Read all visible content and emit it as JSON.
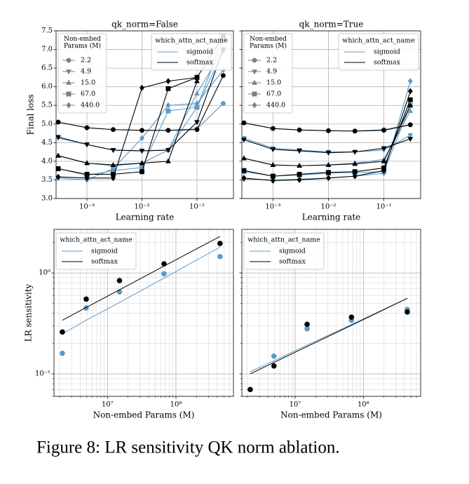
{
  "caption": "Figure 8: LR sensitivity QK norm ablation.",
  "chart_data": [
    {
      "type": "line",
      "title": "qk_norm=False",
      "xlabel": "Learning rate",
      "ylabel": "Final loss",
      "xscale": "log",
      "x": [
        0.0003,
        0.001,
        0.003,
        0.01,
        0.03,
        0.1,
        0.3
      ],
      "xlim": [
        0.000275,
        0.46
      ],
      "ylim": [
        3,
        7.5
      ],
      "xticks": [
        {
          "value": 0.001,
          "label": "10⁻³"
        },
        {
          "value": 0.01,
          "label": "10⁻²"
        },
        {
          "value": 0.1,
          "label": "10⁻¹"
        }
      ],
      "yticks": [
        {
          "value": 3,
          "label": "3.0"
        },
        3.5,
        {
          "value": 4,
          "label": "4.0"
        },
        4.5,
        {
          "value": 5,
          "label": "5.0"
        },
        5.5,
        {
          "value": 6,
          "label": "6.0"
        },
        6.5,
        {
          "value": 7,
          "label": "7.0"
        },
        7.5
      ],
      "grid": true,
      "size_legend_title": "Non-embed Params (M)",
      "legend_marker_color": "#808080",
      "groups": [
        {
          "label": "2.2",
          "marker": "circle"
        },
        {
          "label": "4.9",
          "marker": "triangle-down"
        },
        {
          "label": "15.0",
          "marker": "triangle-up"
        },
        {
          "label": "67.0",
          "marker": "square"
        },
        {
          "label": "440.0",
          "marker": "diamond"
        }
      ],
      "legend_title": "which_attn_act_name",
      "series": [
        {
          "name": "sigmoid",
          "color": "#5b9bc9",
          "values": [
            [
              5.05,
              4.9,
              4.85,
              4.83,
              4.83,
              4.87,
              5.55
            ],
            [
              4.62,
              4.45,
              4.3,
              4.28,
              4.3,
              5.45,
              6.95
            ],
            [
              4.15,
              3.95,
              3.88,
              3.95,
              4.3,
              5.82,
              7.0
            ],
            [
              3.8,
              3.62,
              3.75,
              3.83,
              5.35,
              5.45,
              7.3
            ],
            [
              3.55,
              3.5,
              3.8,
              4.62,
              5.5,
              5.55,
              6.45
            ]
          ]
        },
        {
          "name": "softmax",
          "color": "#000000",
          "values": [
            [
              5.05,
              4.9,
              4.85,
              4.83,
              4.83,
              4.85,
              6.3
            ],
            [
              4.65,
              4.45,
              4.3,
              4.28,
              4.3,
              5.05,
              7.0
            ],
            [
              4.15,
              3.95,
              3.9,
              3.95,
              4.0,
              6.15,
              null
            ],
            [
              3.8,
              3.65,
              3.65,
              3.72,
              5.95,
              6.25,
              7.35
            ],
            [
              3.58,
              3.55,
              3.55,
              5.97,
              6.15,
              6.25,
              null
            ]
          ]
        }
      ]
    },
    {
      "type": "line",
      "title": "qk_norm=True",
      "xlabel": "Learning rate",
      "xscale": "log",
      "x": [
        0.0003,
        0.001,
        0.003,
        0.01,
        0.03,
        0.1,
        0.3
      ],
      "xlim": [
        0.000275,
        0.46
      ],
      "ylim": [
        3,
        7.5
      ],
      "xticks": [
        {
          "value": 0.001,
          "label": "10⁻³"
        },
        {
          "value": 0.01,
          "label": "10⁻²"
        },
        {
          "value": 0.1,
          "label": "10⁻¹"
        }
      ],
      "yticks": [
        3,
        3.5,
        4,
        4.5,
        5,
        5.5,
        6,
        6.5,
        7,
        7.5
      ],
      "show_ytick_labels": false,
      "grid": true,
      "size_legend_title": "Non-embed Params (M)",
      "legend_marker_color": "#808080",
      "groups": [
        {
          "label": "2.2",
          "marker": "circle"
        },
        {
          "label": "4.9",
          "marker": "triangle-down"
        },
        {
          "label": "15.0",
          "marker": "triangle-up"
        },
        {
          "label": "67.0",
          "marker": "square"
        },
        {
          "label": "440.0",
          "marker": "diamond"
        }
      ],
      "legend_title": "which_attn_act_name",
      "series": [
        {
          "name": "sigmoid",
          "color": "#5b9bc9",
          "values": [
            [
              5.03,
              4.88,
              4.84,
              4.82,
              4.81,
              4.85,
              4.98
            ],
            [
              4.62,
              4.35,
              4.3,
              4.25,
              4.25,
              4.3,
              4.7
            ],
            [
              4.08,
              3.9,
              3.88,
              3.9,
              3.95,
              4.05,
              5.35
            ],
            [
              3.72,
              3.6,
              3.63,
              3.68,
              3.7,
              3.72,
              5.5
            ],
            [
              3.52,
              3.5,
              3.52,
              3.55,
              3.6,
              3.68,
              6.15
            ]
          ]
        },
        {
          "name": "softmax",
          "color": "#000000",
          "values": [
            [
              5.03,
              4.88,
              4.84,
              4.82,
              4.81,
              4.83,
              4.98
            ],
            [
              4.58,
              4.32,
              4.28,
              4.23,
              4.25,
              4.35,
              4.6
            ],
            [
              4.08,
              3.9,
              3.88,
              3.9,
              3.93,
              4.0,
              5.5
            ],
            [
              3.75,
              3.6,
              3.65,
              3.7,
              3.72,
              3.82,
              5.65
            ],
            [
              3.55,
              3.48,
              3.5,
              3.55,
              3.6,
              3.75,
              5.88
            ]
          ]
        }
      ]
    },
    {
      "type": "scatter",
      "xlabel": "Non-embed Params (M)",
      "ylabel": "LR sensitivity",
      "xscale": "log",
      "yscale": "log",
      "x": [
        2200000,
        4900000,
        15000000,
        67000000,
        440000000
      ],
      "xlim": [
        1660000,
        690000000
      ],
      "ylim": [
        0.06,
        2.7
      ],
      "xticks": [
        {
          "value": 10000000,
          "label": "10⁷"
        },
        {
          "value": 100000000,
          "label": "10⁸"
        }
      ],
      "yticks": [
        {
          "value": 0.1,
          "label": "10⁻¹"
        },
        {
          "value": 1,
          "label": "10⁰"
        }
      ],
      "xminorticks": [
        2000000,
        3000000,
        4000000,
        5000000,
        6000000,
        7000000,
        8000000,
        9000000,
        20000000,
        30000000,
        40000000,
        50000000,
        60000000,
        70000000,
        80000000,
        90000000,
        200000000,
        300000000,
        400000000,
        500000000,
        600000000
      ],
      "yminorticks": [
        0.06,
        0.07,
        0.08,
        0.09,
        0.2,
        0.3,
        0.4,
        0.5,
        0.6,
        0.7,
        0.8,
        0.9,
        2
      ],
      "grid": true,
      "legend_title": "which_attn_act_name",
      "series": [
        {
          "name": "sigmoid",
          "color": "#5b9bc9",
          "values": [
            0.16,
            0.45,
            0.65,
            0.98,
            1.45
          ],
          "fit": [
            0.25,
            0.34,
            0.51,
            0.89,
            1.8
          ]
        },
        {
          "name": "softmax",
          "color": "#000000",
          "values": [
            0.26,
            0.55,
            0.84,
            1.23,
            1.96
          ],
          "fit": [
            0.34,
            0.455,
            0.68,
            1.17,
            2.3
          ]
        }
      ]
    },
    {
      "type": "scatter",
      "xlabel": "Non-embed Params (M)",
      "xscale": "log",
      "yscale": "log",
      "x": [
        2200000,
        4900000,
        15000000,
        67000000,
        440000000
      ],
      "xlim": [
        1660000,
        690000000
      ],
      "ylim": [
        0.06,
        2.7
      ],
      "xticks": [
        {
          "value": 10000000,
          "label": "10⁷"
        },
        {
          "value": 100000000,
          "label": "10⁸"
        }
      ],
      "yticks": [
        0.1,
        1
      ],
      "show_ytick_labels": false,
      "xminorticks": [
        2000000,
        3000000,
        4000000,
        5000000,
        6000000,
        7000000,
        8000000,
        9000000,
        20000000,
        30000000,
        40000000,
        50000000,
        60000000,
        70000000,
        80000000,
        90000000,
        200000000,
        300000000,
        400000000,
        500000000,
        600000000
      ],
      "yminorticks": [
        0.06,
        0.07,
        0.08,
        0.09,
        0.2,
        0.3,
        0.4,
        0.5,
        0.6,
        0.7,
        0.8,
        0.9,
        2
      ],
      "grid": true,
      "legend_title": "which_attn_act_name",
      "series": [
        {
          "name": "sigmoid",
          "color": "#5b9bc9",
          "values": [
            null,
            0.15,
            0.28,
            0.34,
            0.435
          ],
          "fit": [
            0.105,
            0.135,
            0.193,
            0.309,
            0.56
          ]
        },
        {
          "name": "softmax",
          "color": "#000000",
          "values": [
            0.07,
            0.12,
            0.31,
            0.365,
            0.41
          ],
          "fit": [
            0.1,
            0.13,
            0.187,
            0.303,
            0.56
          ]
        }
      ]
    }
  ]
}
